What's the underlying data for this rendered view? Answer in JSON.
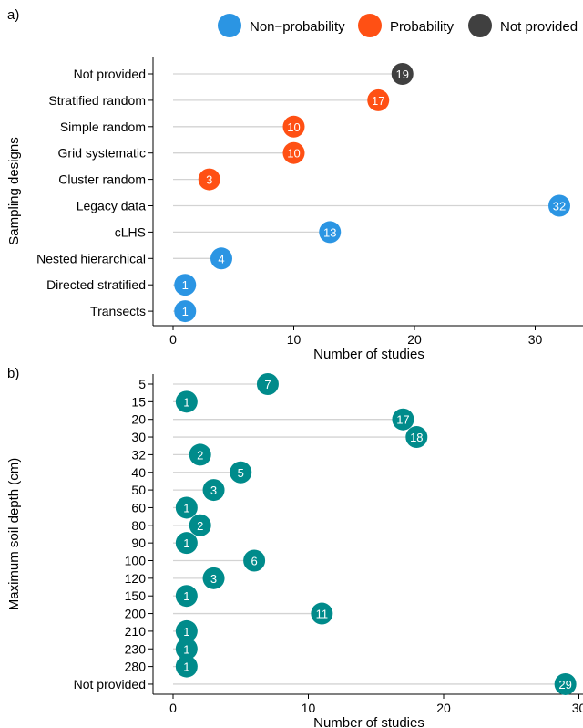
{
  "legend": {
    "items": [
      {
        "label": "Non−probability",
        "color": "#2b95e3"
      },
      {
        "label": "Probability",
        "color": "#ff5014"
      },
      {
        "label": "Not provided",
        "color": "#404040"
      }
    ]
  },
  "chart_data": [
    {
      "panel_label": "a)",
      "type": "lollipop",
      "xlabel": "Number of studies",
      "ylabel": "Sampling designs",
      "xlim": [
        0,
        33
      ],
      "xticks": [
        0,
        10,
        20,
        30
      ],
      "categories": [
        "Not provided",
        "Stratified random",
        "Simple random",
        "Grid systematic",
        "Cluster random",
        "Legacy data",
        "cLHS",
        "Nested hierarchical",
        "Directed stratified",
        "Transects"
      ],
      "values": [
        19,
        17,
        10,
        10,
        3,
        32,
        13,
        4,
        1,
        1
      ],
      "groups": [
        "Not provided",
        "Probability",
        "Probability",
        "Probability",
        "Probability",
        "Non−probability",
        "Non−probability",
        "Non−probability",
        "Non−probability",
        "Non−probability"
      ],
      "value_labels": [
        "19",
        "17",
        "10",
        "10",
        "3",
        "32",
        "13",
        "4",
        "1",
        "1"
      ]
    },
    {
      "panel_label": "b)",
      "type": "lollipop",
      "xlabel": "Number of studies",
      "ylabel": "Maximum soil depth (cm)",
      "xlim": [
        0,
        30
      ],
      "xticks": [
        0,
        10,
        20,
        30
      ],
      "point_color": "#008b8b",
      "categories": [
        "5",
        "15",
        "20",
        "30",
        "32",
        "40",
        "50",
        "60",
        "80",
        "90",
        "100",
        "120",
        "150",
        "200",
        "210",
        "230",
        "280",
        "Not provided"
      ],
      "values": [
        7,
        1,
        17,
        18,
        2,
        5,
        3,
        1,
        2,
        1,
        6,
        3,
        1,
        11,
        1,
        1,
        1,
        29
      ],
      "value_labels": [
        "7",
        "1",
        "17",
        "18",
        "2",
        "5",
        "3",
        "1",
        "2",
        "1",
        "6",
        "3",
        "1",
        "11",
        "1",
        "1",
        "1",
        "29"
      ]
    }
  ]
}
